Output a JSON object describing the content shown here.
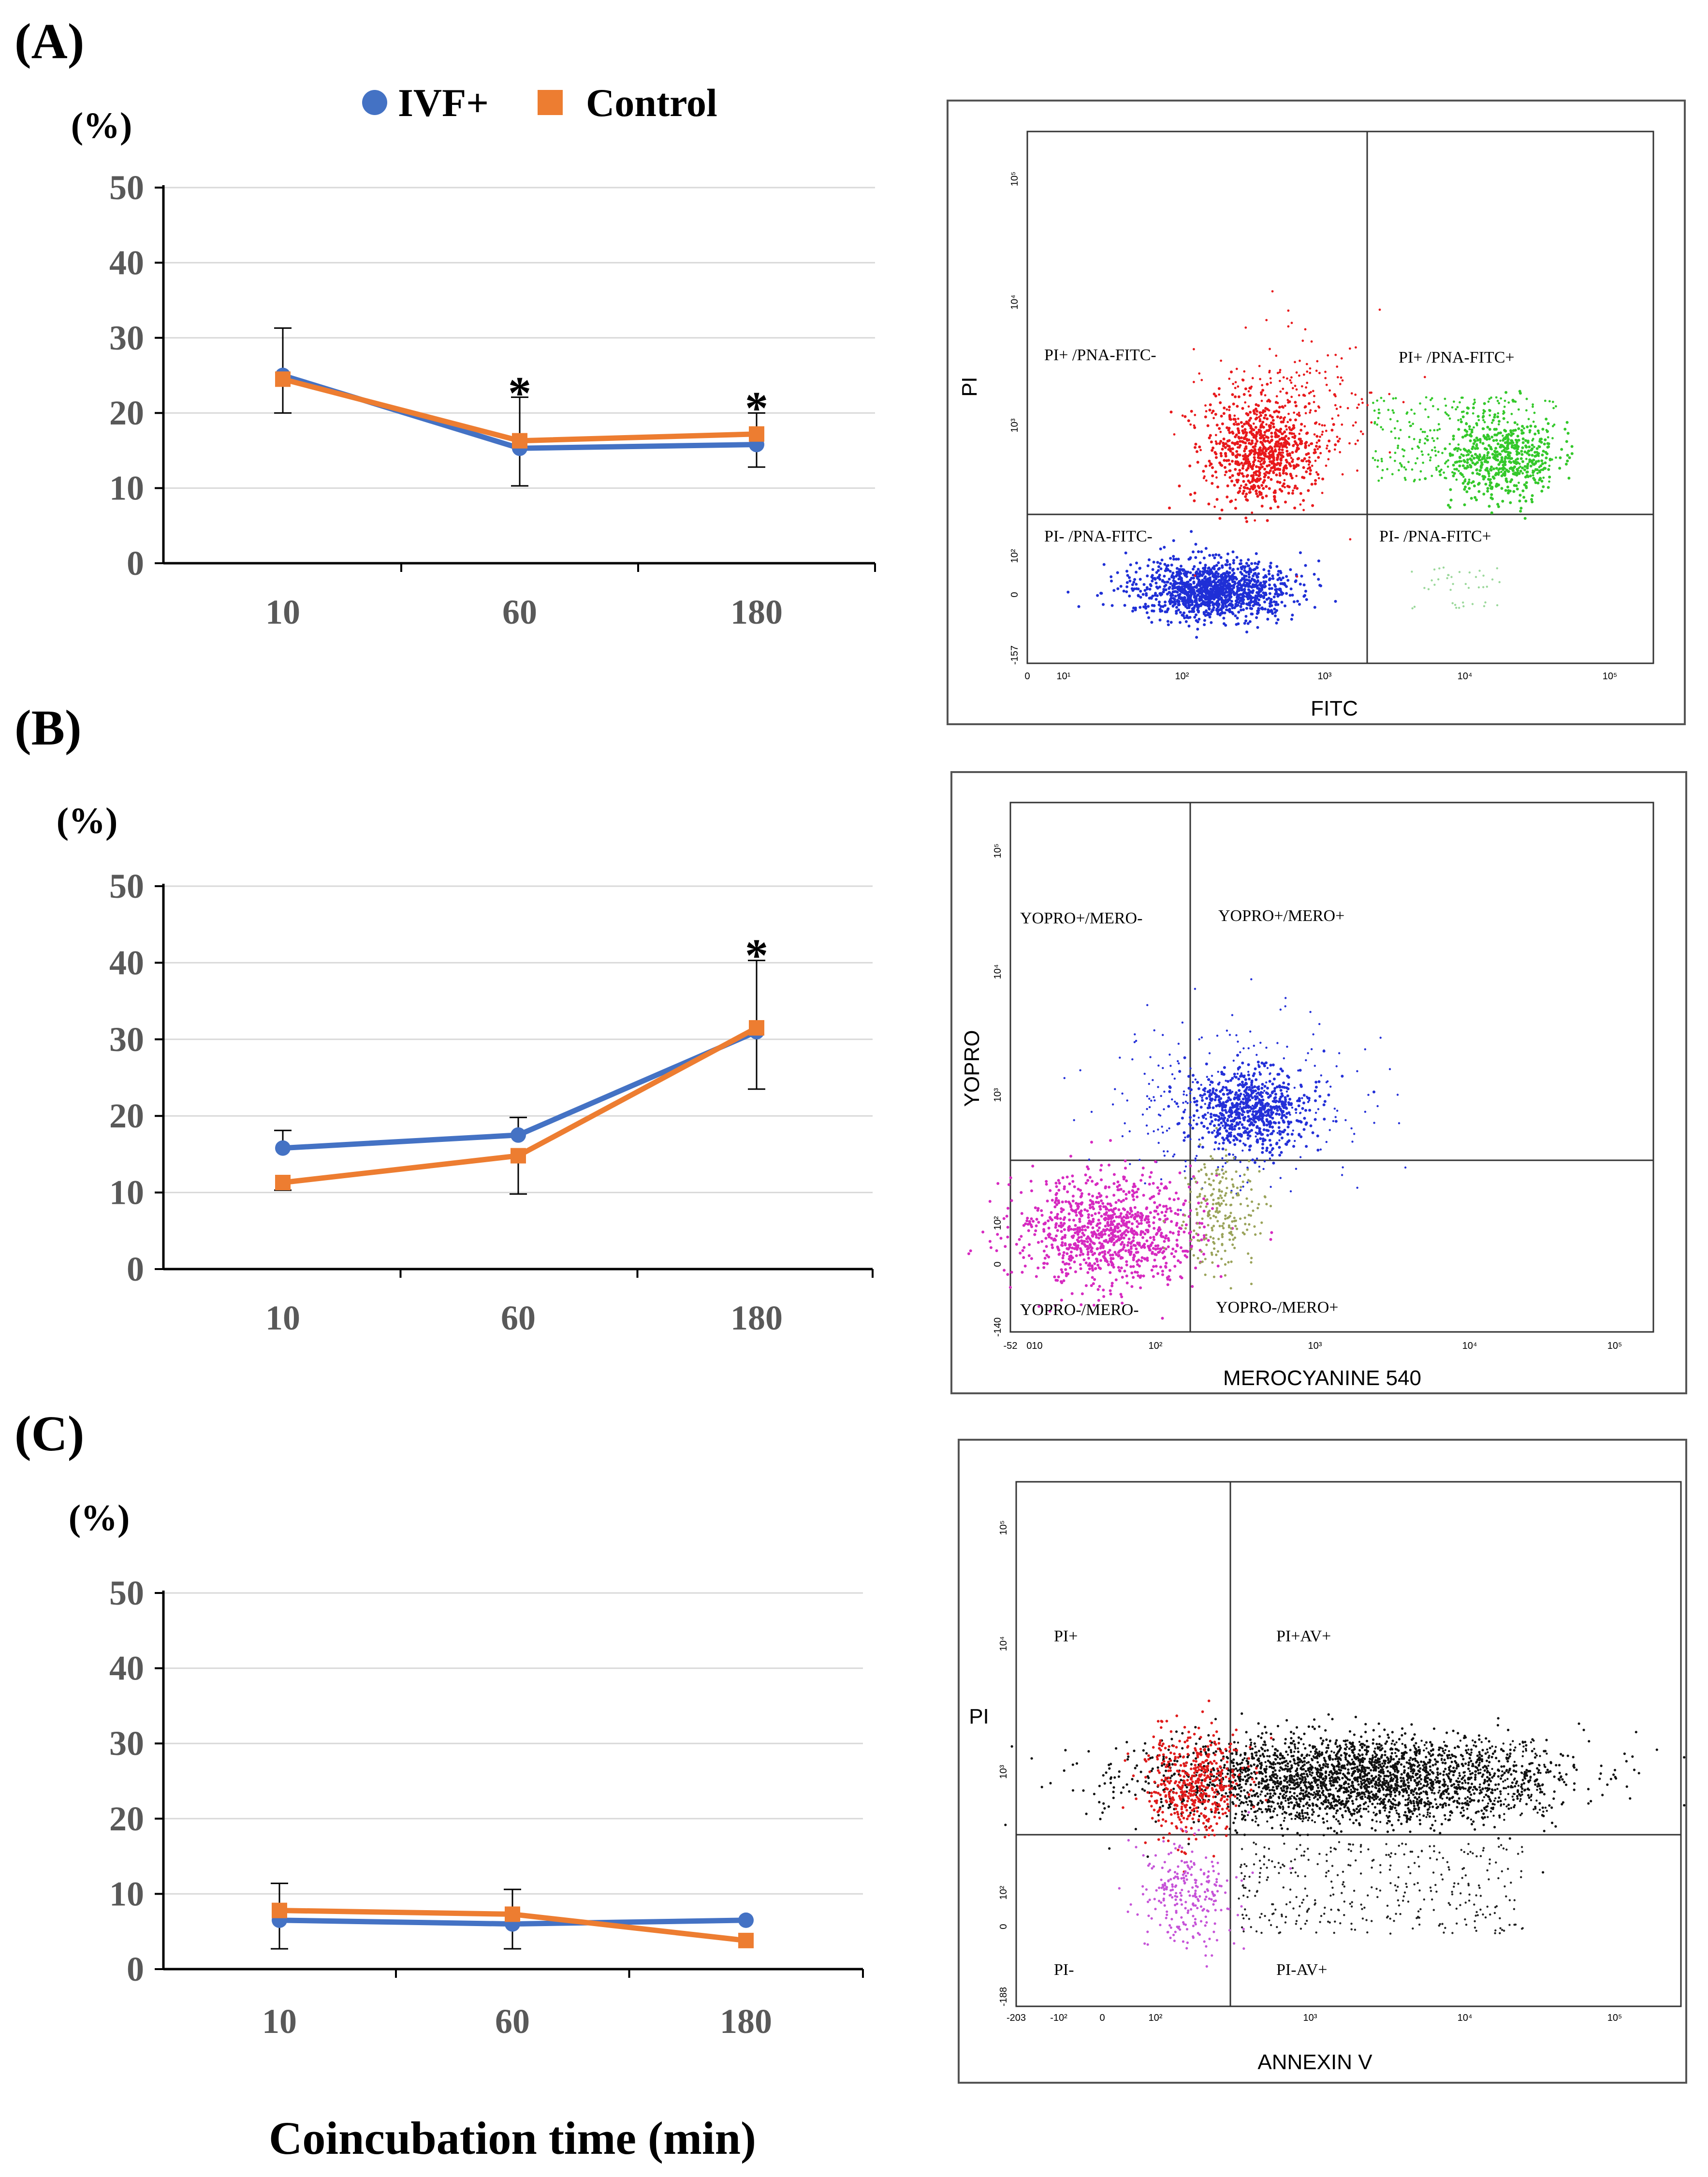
{
  "legend": {
    "ivf": "IVF+",
    "control": "Control"
  },
  "colors": {
    "ivf": "#4472C4",
    "control": "#ED7D31",
    "grid": "#D9D9D9",
    "axis": "#000000"
  },
  "x_title": "Coincubation time (min)",
  "chart_data": [
    {
      "panel": "(A)",
      "type": "line",
      "title": "",
      "ylabel": "(%)",
      "xlabel": "Coincubation time (min)",
      "categories": [
        "10",
        "60",
        "180"
      ],
      "yticks": [
        "0",
        "10",
        "20",
        "30",
        "40",
        "50"
      ],
      "ylim": [
        0,
        50
      ],
      "grid": true,
      "legend_position": "top",
      "series": [
        {
          "name": "IVF+",
          "values": [
            25.0,
            15.3,
            15.8
          ],
          "err_low": [
            5.0,
            5.0,
            3.0
          ],
          "err_high": [
            6.3,
            6.8,
            4.2
          ]
        },
        {
          "name": "Control",
          "values": [
            24.5,
            16.3,
            17.2
          ],
          "err_low": [
            0,
            0,
            0
          ],
          "err_high": [
            0,
            0,
            0
          ]
        }
      ],
      "annotations": [
        {
          "category": "60",
          "text": "*",
          "value": 22.5
        },
        {
          "category": "180",
          "text": "*",
          "value": 20.5
        }
      ]
    },
    {
      "panel": "(B)",
      "type": "line",
      "title": "",
      "ylabel": "(%)",
      "xlabel": "Coincubation time (min)",
      "categories": [
        "10",
        "60",
        "180"
      ],
      "yticks": [
        "0",
        "10",
        "20",
        "30",
        "40",
        "50"
      ],
      "ylim": [
        0,
        50
      ],
      "grid": true,
      "series": [
        {
          "name": "IVF+",
          "values": [
            15.8,
            17.5,
            31.0
          ],
          "err_low": [
            0,
            0,
            7.5
          ],
          "err_high": [
            2.3,
            2.3,
            9.3
          ]
        },
        {
          "name": "Control",
          "values": [
            11.3,
            14.8,
            31.5
          ],
          "err_low": [
            1.0,
            5.0,
            0
          ],
          "err_high": [
            0,
            0,
            0
          ]
        }
      ],
      "annotations": [
        {
          "category": "180",
          "text": "*",
          "value": 40.8
        }
      ]
    },
    {
      "panel": "(C)",
      "type": "line",
      "title": "",
      "ylabel": "(%)",
      "xlabel": "Coincubation time (min)",
      "categories": [
        "10",
        "60",
        "180"
      ],
      "yticks": [
        "0",
        "10",
        "20",
        "30",
        "40",
        "50"
      ],
      "ylim": [
        0,
        50
      ],
      "grid": true,
      "series": [
        {
          "name": "IVF+",
          "values": [
            6.5,
            6.0,
            6.5
          ],
          "err_low": [
            3.8,
            3.3,
            0
          ],
          "err_high": [
            0,
            0,
            0
          ]
        },
        {
          "name": "Control",
          "values": [
            7.8,
            7.3,
            3.8
          ],
          "err_low": [
            0,
            0,
            0
          ],
          "err_high": [
            3.6,
            3.3,
            0
          ]
        }
      ],
      "annotations": []
    }
  ],
  "flow_plots": [
    {
      "id": "A",
      "x_axis_label": "FITC",
      "y_axis_label": "PI",
      "quadrants": {
        "ul": "PI+ /PNA-FITC-",
        "ur": "PI+ /PNA-FITC+",
        "ll": "PI- /PNA-FITC-",
        "lr": "PI- /PNA-FITC+"
      },
      "x_ticks": [
        "0",
        "10¹",
        "10²",
        "10³",
        "10⁴",
        "10⁵"
      ],
      "y_ticks": [
        "-157",
        "0",
        "10²",
        "10³",
        "10⁴",
        "10⁵"
      ],
      "clusters": [
        {
          "name": "PI+/PNA-FITC- cells",
          "color": "#E8191C"
        },
        {
          "name": "PI+/PNA-FITC+ cells",
          "color": "#34C82B"
        },
        {
          "name": "PI-/PNA-FITC- cells",
          "color": "#1F2FD6"
        },
        {
          "name": "PI-/PNA-FITC+ cells",
          "color": "#9BD89B"
        }
      ]
    },
    {
      "id": "B",
      "x_axis_label": "MEROCYANINE 540",
      "y_axis_label": "YOPRO",
      "quadrants": {
        "ul": "YOPRO+/MERO-",
        "ur": "YOPRO+/MERO+",
        "ll": "YOPRO-/MERO-",
        "lr": "YOPRO-/MERO+"
      },
      "x_ticks": [
        "-52",
        "010",
        "10²",
        "10³",
        "10⁴",
        "10⁵"
      ],
      "y_ticks": [
        "-140",
        "0",
        "10²",
        "10³",
        "10⁴",
        "10⁵"
      ],
      "clusters": [
        {
          "name": "YOPRO+/MERO+ cells",
          "color": "#2430D8"
        },
        {
          "name": "YOPRO-/MERO- cells",
          "color": "#D62AC0"
        },
        {
          "name": "YOPRO-/MERO+ cells",
          "color": "#9AA35A"
        }
      ]
    },
    {
      "id": "C",
      "x_axis_label": "ANNEXIN V",
      "y_axis_label": "PI",
      "quadrants": {
        "ul": "PI+",
        "ur": "PI+AV+",
        "ll": "PI-",
        "lr": "PI-AV+"
      },
      "x_ticks": [
        "-203",
        "-10²",
        "0",
        "10²",
        "10³",
        "10⁴",
        "10⁵"
      ],
      "y_ticks": [
        "-188",
        "0",
        "10²",
        "10³",
        "10⁴",
        "10⁵"
      ],
      "clusters": [
        {
          "name": "PI+ cells",
          "color": "#E01B1B"
        },
        {
          "name": "PI+AV+ cells",
          "color": "#111111"
        },
        {
          "name": "PI- cells",
          "color": "#C654D8"
        },
        {
          "name": "PI-AV+ cells",
          "color": "#222222"
        }
      ]
    }
  ]
}
